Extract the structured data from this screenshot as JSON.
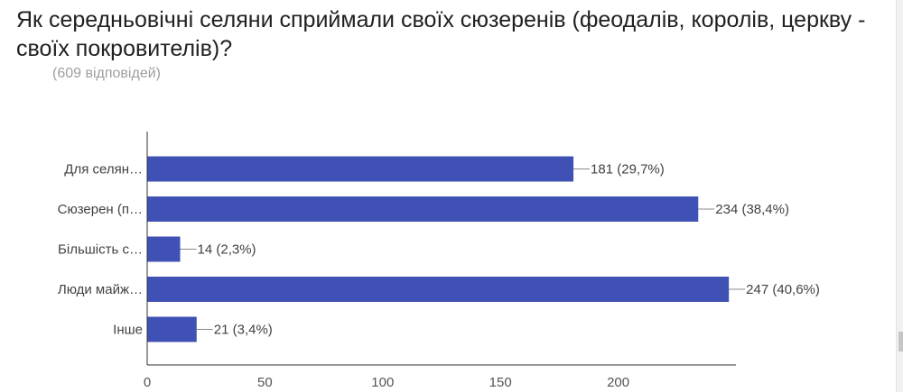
{
  "title": "Як середньовічні селяни сприймали своїх сюзеренів (феодалів, королів, церкву - своїх покровителів)?",
  "subtitle": "(609 відповідей)",
  "chart_data": {
    "type": "bar",
    "orientation": "horizontal",
    "categories": [
      "Для селян…",
      "Сюзерен (п…",
      "Більшість с…",
      "Люди майж…",
      "Інше"
    ],
    "values": [
      181,
      234,
      14,
      247,
      21
    ],
    "value_labels": [
      "181 (29,7%)",
      "234 (38,4%)",
      "14 (2,3%)",
      "247 (40,6%)",
      "21 (3,4%)"
    ],
    "xlim": [
      0,
      250
    ],
    "x_ticks": [
      0,
      50,
      100,
      150,
      200
    ],
    "grid": false,
    "bar_color": "#3f51b5",
    "axis_color": "#333333"
  }
}
